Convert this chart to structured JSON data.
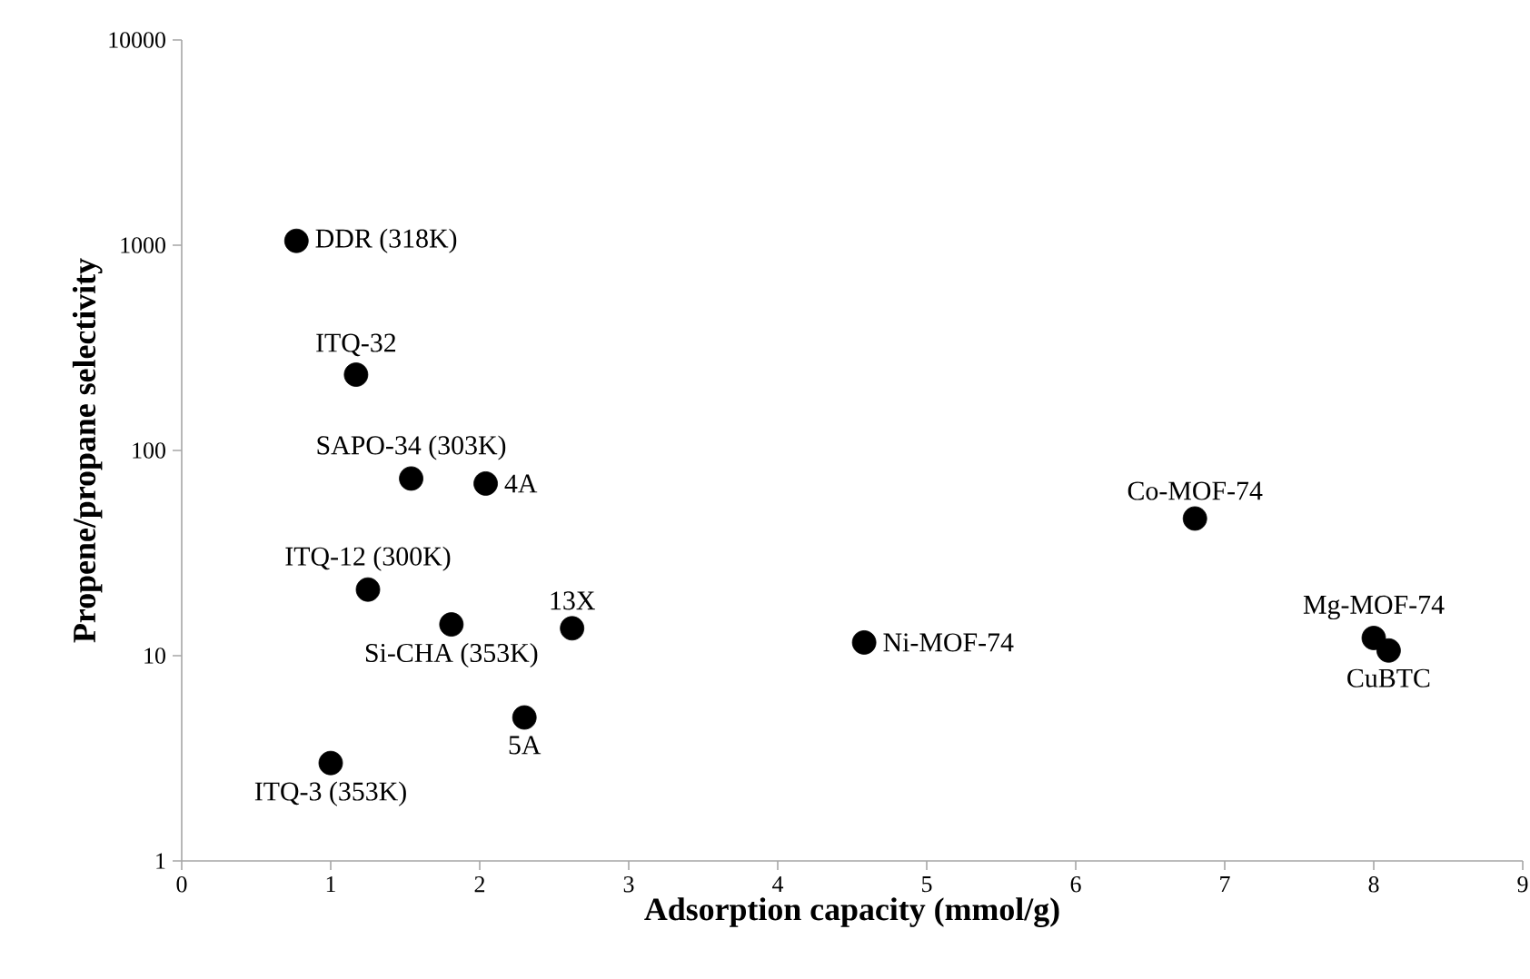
{
  "chart_data": {
    "type": "scatter",
    "xlabel": "Adsorption capacity (mmol/g)",
    "ylabel": "Propene/propane selectivity",
    "xlim": [
      0,
      9
    ],
    "xticks": [
      0,
      1,
      2,
      3,
      4,
      5,
      6,
      7,
      8,
      9
    ],
    "ylim": [
      1,
      10000
    ],
    "yticks": [
      1,
      10,
      100,
      1000,
      10000
    ],
    "log": "y",
    "grid": false,
    "marker": "circle",
    "series": [
      {
        "color": "#000000",
        "x": [
          0.77,
          1.17,
          1.54,
          2.04,
          1.25,
          1.81,
          2.62,
          2.3,
          1.0,
          4.58,
          6.8,
          8.0,
          8.1
        ],
        "values": [
          1050,
          234,
          73,
          69,
          21,
          14.2,
          13.6,
          5.0,
          3.0,
          11.6,
          46.6,
          12.2,
          10.6
        ]
      }
    ],
    "annotations": [
      {
        "text": "DDR (318K)",
        "x": 0.77,
        "y": 1050
      },
      {
        "text": "ITQ-32",
        "x": 1.17,
        "y": 234
      },
      {
        "text": "SAPO-34 (303K)",
        "x": 1.54,
        "y": 73
      },
      {
        "text": "4A",
        "x": 2.04,
        "y": 69
      },
      {
        "text": "ITQ-12 (300K)",
        "x": 1.25,
        "y": 21
      },
      {
        "text": "Si-CHA (353K)",
        "x": 1.81,
        "y": 14.2
      },
      {
        "text": "13X",
        "x": 2.62,
        "y": 13.6
      },
      {
        "text": "5A",
        "x": 2.3,
        "y": 5.0
      },
      {
        "text": "ITQ-3 (353K)",
        "x": 1.0,
        "y": 3.0
      },
      {
        "text": "Ni-MOF-74",
        "x": 4.58,
        "y": 11.6
      },
      {
        "text": "Co-MOF-74",
        "x": 6.8,
        "y": 46.6
      },
      {
        "text": "Mg-MOF-74",
        "x": 8.0,
        "y": 12.2
      },
      {
        "text": "CuBTC",
        "x": 8.1,
        "y": 10.6
      }
    ]
  }
}
